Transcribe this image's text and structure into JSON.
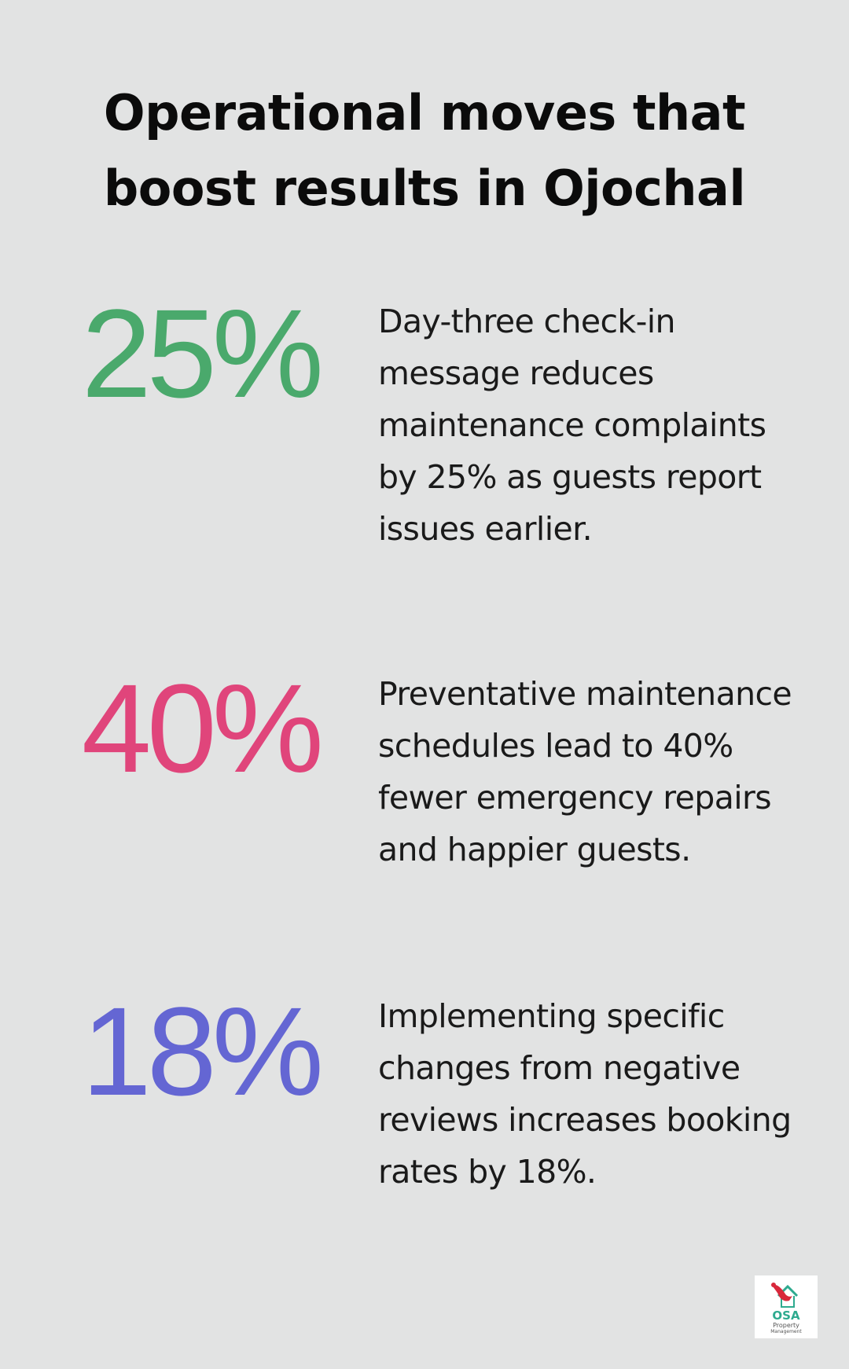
{
  "title_line1": "Operational moves that",
  "title_line2": "boost results in Ojochal",
  "stats": [
    {
      "value": "25%",
      "color": "#4aa96c",
      "description": "Day-three check-in message reduces maintenance complaints by 25% as guests report issues earlier."
    },
    {
      "value": "40%",
      "color": "#e0457b",
      "description": "Preventative maintenance schedules lead to 40% fewer emergency repairs and happier guests."
    },
    {
      "value": "18%",
      "color": "#6466d3",
      "description": "Implementing specific changes from negative reviews increases booking rates by 18%."
    }
  ],
  "logo": {
    "name": "OSA",
    "line1": "Property",
    "line2": "Management",
    "icon": "bird-house-icon"
  }
}
